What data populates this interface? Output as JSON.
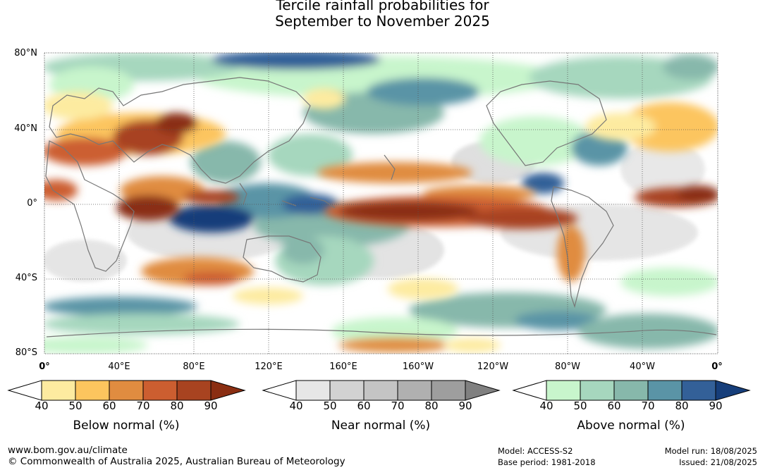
{
  "title": {
    "line1": "Tercile rainfall probabilities for",
    "line2": "September to November 2025"
  },
  "axes": {
    "latitude_labels": [
      "80°N",
      "40°N",
      "0°",
      "40°S",
      "80°S"
    ],
    "longitude_labels": [
      "0°",
      "40°E",
      "80°E",
      "120°E",
      "160°E",
      "160°W",
      "120°W",
      "80°W",
      "40°W",
      "0°"
    ]
  },
  "legends": [
    {
      "title": "Below normal (%)",
      "ticks": [
        "40",
        "50",
        "60",
        "70",
        "80",
        "90"
      ],
      "colors": [
        "#ffffff",
        "#fdeba0",
        "#fcc55e",
        "#e08c40",
        "#cc5e30",
        "#a84320",
        "#8a2e12"
      ]
    },
    {
      "title": "Near normal (%)",
      "ticks": [
        "40",
        "50",
        "60",
        "70",
        "80",
        "90"
      ],
      "colors": [
        "#ffffff",
        "#e6e6e6",
        "#d2d2d2",
        "#c4c4c4",
        "#b0b0b0",
        "#9e9e9e",
        "#808080"
      ]
    },
    {
      "title": "Above normal (%)",
      "ticks": [
        "40",
        "50",
        "60",
        "70",
        "80",
        "90"
      ],
      "colors": [
        "#ffffff",
        "#c8f5cc",
        "#a6d7be",
        "#87b8ab",
        "#5a94a6",
        "#336098",
        "#163e7a"
      ]
    }
  ],
  "footer": {
    "website": "www.bom.gov.au/climate",
    "copyright": "© Commonwealth of Australia 2025, Australian Bureau of Meteorology",
    "model": "Model: ACCESS-S2",
    "base_period": "Base period: 1981-2018",
    "model_run": "Model run: 18/08/2025",
    "issued": "Issued: 21/08/2025"
  }
}
